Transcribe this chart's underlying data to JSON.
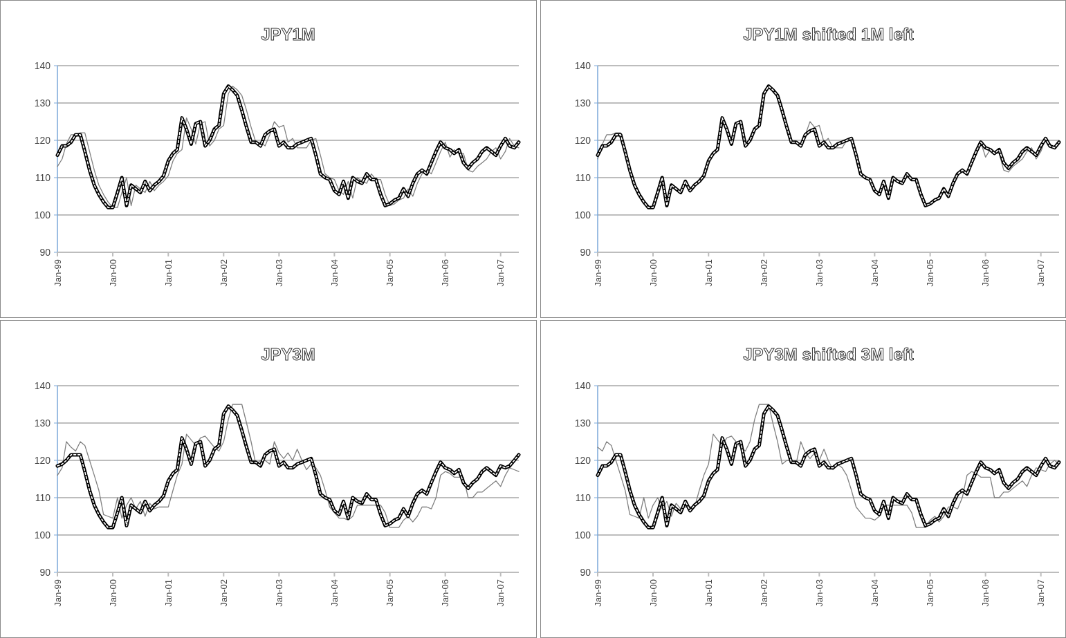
{
  "chart_data": [
    {
      "type": "line",
      "title": "JPY1M",
      "xlim": [
        "1999-01",
        "2007-05"
      ],
      "ylim": [
        90,
        140
      ],
      "yticks": [
        90,
        100,
        110,
        120,
        130,
        140
      ],
      "grid": "y",
      "marker": "none",
      "xticks": [
        {
          "value": "1999-01",
          "label": "Jan-99"
        },
        {
          "value": "2000-01",
          "label": "Jan-00"
        },
        {
          "value": "2001-01",
          "label": "Jan-01"
        },
        {
          "value": "2002-01",
          "label": "Jan-02"
        },
        {
          "value": "2003-01",
          "label": "Jan-03"
        },
        {
          "value": "2004-01",
          "label": "Jan-04"
        },
        {
          "value": "2005-01",
          "label": "Jan-05"
        },
        {
          "value": "2006-01",
          "label": "Jan-06"
        },
        {
          "value": "2007-01",
          "label": "Jan-07"
        }
      ],
      "x": [
        "1999-01",
        "1999-02",
        "1999-03",
        "1999-04",
        "1999-05",
        "1999-06",
        "1999-07",
        "1999-08",
        "1999-09",
        "1999-10",
        "1999-11",
        "1999-12",
        "2000-01",
        "2000-02",
        "2000-03",
        "2000-04",
        "2000-05",
        "2000-06",
        "2000-07",
        "2000-08",
        "2000-09",
        "2000-10",
        "2000-11",
        "2000-12",
        "2001-01",
        "2001-02",
        "2001-03",
        "2001-04",
        "2001-05",
        "2001-06",
        "2001-07",
        "2001-08",
        "2001-09",
        "2001-10",
        "2001-11",
        "2001-12",
        "2002-01",
        "2002-02",
        "2002-03",
        "2002-04",
        "2002-05",
        "2002-06",
        "2002-07",
        "2002-08",
        "2002-09",
        "2002-10",
        "2002-11",
        "2002-12",
        "2003-01",
        "2003-02",
        "2003-03",
        "2003-04",
        "2003-05",
        "2003-06",
        "2003-07",
        "2003-08",
        "2003-09",
        "2003-10",
        "2003-11",
        "2003-12",
        "2004-01",
        "2004-02",
        "2004-03",
        "2004-04",
        "2004-05",
        "2004-06",
        "2004-07",
        "2004-08",
        "2004-09",
        "2004-10",
        "2004-11",
        "2004-12",
        "2005-01",
        "2005-02",
        "2005-03",
        "2005-04",
        "2005-05",
        "2005-06",
        "2005-07",
        "2005-08",
        "2005-09",
        "2005-10",
        "2005-11",
        "2005-12",
        "2006-01",
        "2006-02",
        "2006-03",
        "2006-04",
        "2006-05",
        "2006-06",
        "2006-07",
        "2006-08",
        "2006-09",
        "2006-10",
        "2006-11",
        "2006-12",
        "2007-01",
        "2007-02",
        "2007-03",
        "2007-04",
        "2007-05"
      ],
      "series": [
        {
          "color": "#808080",
          "line_style": "solid",
          "values": [
            113,
            115,
            119,
            121.5,
            121.5,
            122,
            122,
            117,
            112,
            108,
            105.5,
            103.5,
            102,
            102,
            106,
            110,
            102.5,
            108,
            107,
            106,
            109,
            106.5,
            108,
            109,
            110.5,
            114.5,
            116.5,
            117.5,
            126,
            123,
            119,
            124.5,
            125,
            118.5,
            120,
            123,
            124,
            132.5,
            134.5,
            133.5,
            132,
            128,
            123.5,
            119.5,
            119.5,
            118.5,
            121.5,
            125,
            123.5,
            124,
            119.5,
            120.5,
            118,
            118,
            118,
            120,
            120.5,
            116,
            111,
            110,
            109.5,
            106.5,
            105.5,
            109,
            104.5,
            110,
            109,
            108.5,
            111,
            109.5,
            109.5,
            105.5,
            102.5,
            103,
            104,
            104.5,
            107,
            105,
            108.5,
            111,
            112,
            111,
            114,
            117,
            119.5,
            115.5,
            117.5,
            116.5,
            116.5,
            112,
            111.5,
            113,
            114,
            115,
            117,
            118,
            115,
            117,
            120.5,
            118.5,
            118
          ]
        },
        {
          "color": "#000000",
          "line_style": "solid",
          "values": [
            116,
            118.5,
            118.5,
            119.5,
            121.5,
            121.5,
            117,
            112,
            108,
            105.5,
            103.5,
            102,
            102,
            106,
            110,
            102.5,
            108,
            107,
            106,
            109,
            106.5,
            108,
            109,
            110.5,
            114.5,
            116.5,
            117.5,
            126,
            123,
            119,
            124.5,
            125,
            118.5,
            120,
            123,
            124,
            132.5,
            134.5,
            133.5,
            132,
            128,
            123.5,
            119.5,
            119.5,
            118.5,
            121.5,
            122.5,
            123,
            118.5,
            119.5,
            118,
            118,
            119,
            119.5,
            120,
            120.5,
            116,
            111,
            110,
            109.5,
            106.5,
            105.5,
            109,
            104.5,
            110,
            109,
            108.5,
            111,
            109.5,
            109.5,
            105.5,
            102.5,
            103,
            104,
            104.5,
            107,
            105,
            108.5,
            111,
            112,
            111,
            114,
            117,
            119.5,
            118,
            117.5,
            116.5,
            117.5,
            114,
            112.5,
            114,
            115,
            117,
            118,
            117,
            116,
            118.5,
            120.5,
            118.5,
            118,
            119.5
          ]
        },
        {
          "color": "#ffffff",
          "line_style": "dashed",
          "values": [
            116,
            118.5,
            118.5,
            119.5,
            121.5,
            121.5,
            117,
            112,
            108,
            105.5,
            103.5,
            102,
            102,
            106,
            110,
            102.5,
            108,
            107,
            106,
            109,
            106.5,
            108,
            109,
            110.5,
            114.5,
            116.5,
            117.5,
            126,
            123,
            119,
            124.5,
            125,
            118.5,
            120,
            123,
            124,
            132.5,
            134.5,
            133.5,
            132,
            128,
            123.5,
            119.5,
            119.5,
            118.5,
            121.5,
            122.5,
            123,
            118.5,
            119.5,
            118,
            118,
            119,
            119.5,
            120,
            120.5,
            116,
            111,
            110,
            109.5,
            106.5,
            105.5,
            109,
            104.5,
            110,
            109,
            108.5,
            111,
            109.5,
            109.5,
            105.5,
            102.5,
            103,
            104,
            104.5,
            107,
            105,
            108.5,
            111,
            112,
            111,
            114,
            117,
            119.5,
            118,
            117.5,
            116.5,
            117.5,
            114,
            112.5,
            114,
            115,
            117,
            118,
            117,
            116,
            118.5,
            120.5,
            118.5,
            118,
            119.5
          ]
        }
      ]
    },
    {
      "type": "line",
      "title": "JPY1M shifted 1M left",
      "xlim": [
        "1999-01",
        "2007-05"
      ],
      "ylim": [
        90,
        140
      ],
      "yticks": [
        90,
        100,
        110,
        120,
        130,
        140
      ],
      "grid": "y",
      "marker": "none",
      "xticks": [
        {
          "value": "1999-01",
          "label": "Jan-99"
        },
        {
          "value": "2000-01",
          "label": "Jan-00"
        },
        {
          "value": "2001-01",
          "label": "Jan-01"
        },
        {
          "value": "2002-01",
          "label": "Jan-02"
        },
        {
          "value": "2003-01",
          "label": "Jan-03"
        },
        {
          "value": "2004-01",
          "label": "Jan-04"
        },
        {
          "value": "2005-01",
          "label": "Jan-05"
        },
        {
          "value": "2006-01",
          "label": "Jan-06"
        },
        {
          "value": "2007-01",
          "label": "Jan-07"
        }
      ],
      "x": [
        "1999-01",
        "1999-02",
        "1999-03",
        "1999-04",
        "1999-05",
        "1999-06",
        "1999-07",
        "1999-08",
        "1999-09",
        "1999-10",
        "1999-11",
        "1999-12",
        "2000-01",
        "2000-02",
        "2000-03",
        "2000-04",
        "2000-05",
        "2000-06",
        "2000-07",
        "2000-08",
        "2000-09",
        "2000-10",
        "2000-11",
        "2000-12",
        "2001-01",
        "2001-02",
        "2001-03",
        "2001-04",
        "2001-05",
        "2001-06",
        "2001-07",
        "2001-08",
        "2001-09",
        "2001-10",
        "2001-11",
        "2001-12",
        "2002-01",
        "2002-02",
        "2002-03",
        "2002-04",
        "2002-05",
        "2002-06",
        "2002-07",
        "2002-08",
        "2002-09",
        "2002-10",
        "2002-11",
        "2002-12",
        "2003-01",
        "2003-02",
        "2003-03",
        "2003-04",
        "2003-05",
        "2003-06",
        "2003-07",
        "2003-08",
        "2003-09",
        "2003-10",
        "2003-11",
        "2003-12",
        "2004-01",
        "2004-02",
        "2004-03",
        "2004-04",
        "2004-05",
        "2004-06",
        "2004-07",
        "2004-08",
        "2004-09",
        "2004-10",
        "2004-11",
        "2004-12",
        "2005-01",
        "2005-02",
        "2005-03",
        "2005-04",
        "2005-05",
        "2005-06",
        "2005-07",
        "2005-08",
        "2005-09",
        "2005-10",
        "2005-11",
        "2005-12",
        "2006-01",
        "2006-02",
        "2006-03",
        "2006-04",
        "2006-05",
        "2006-06",
        "2006-07",
        "2006-08",
        "2006-09",
        "2006-10",
        "2006-11",
        "2006-12",
        "2007-01",
        "2007-02",
        "2007-03",
        "2007-04",
        "2007-05"
      ],
      "series": [
        {
          "color": "#808080",
          "line_style": "solid",
          "values": [
            115,
            119,
            121.5,
            121.5,
            122,
            122,
            117,
            112,
            108,
            105.5,
            103.5,
            102,
            102,
            106,
            110,
            102.5,
            108,
            107,
            106,
            109,
            106.5,
            108,
            109,
            110.5,
            114.5,
            116.5,
            117.5,
            126,
            123,
            119,
            124.5,
            125,
            118.5,
            120,
            123,
            124,
            132.5,
            134.5,
            133.5,
            132,
            128,
            123.5,
            119.5,
            119.5,
            118.5,
            121.5,
            125,
            123.5,
            124,
            119.5,
            120.5,
            118,
            118,
            118,
            120,
            120.5,
            116,
            111,
            110,
            109.5,
            106.5,
            105.5,
            109,
            104.5,
            110,
            109,
            108.5,
            111,
            109.5,
            109.5,
            105.5,
            102.5,
            103,
            104,
            104.5,
            107,
            105,
            108.5,
            111,
            112,
            111,
            114,
            117,
            119.5,
            115.5,
            117.5,
            116.5,
            116.5,
            112,
            111.5,
            113,
            114,
            115,
            117,
            118,
            115,
            117,
            120.5,
            118.5,
            118,
            120
          ]
        },
        {
          "color": "#000000",
          "line_style": "solid",
          "values": [
            116,
            118.5,
            118.5,
            119.5,
            121.5,
            121.5,
            117,
            112,
            108,
            105.5,
            103.5,
            102,
            102,
            106,
            110,
            102.5,
            108,
            107,
            106,
            109,
            106.5,
            108,
            109,
            110.5,
            114.5,
            116.5,
            117.5,
            126,
            123,
            119,
            124.5,
            125,
            118.5,
            120,
            123,
            124,
            132.5,
            134.5,
            133.5,
            132,
            128,
            123.5,
            119.5,
            119.5,
            118.5,
            121.5,
            122.5,
            123,
            118.5,
            119.5,
            118,
            118,
            119,
            119.5,
            120,
            120.5,
            116,
            111,
            110,
            109.5,
            106.5,
            105.5,
            109,
            104.5,
            110,
            109,
            108.5,
            111,
            109.5,
            109.5,
            105.5,
            102.5,
            103,
            104,
            104.5,
            107,
            105,
            108.5,
            111,
            112,
            111,
            114,
            117,
            119.5,
            118,
            117.5,
            116.5,
            117.5,
            114,
            112.5,
            114,
            115,
            117,
            118,
            117,
            116,
            118.5,
            120.5,
            118.5,
            118,
            119.5
          ]
        },
        {
          "color": "#ffffff",
          "line_style": "dashed",
          "values": [
            116,
            118.5,
            118.5,
            119.5,
            121.5,
            121.5,
            117,
            112,
            108,
            105.5,
            103.5,
            102,
            102,
            106,
            110,
            102.5,
            108,
            107,
            106,
            109,
            106.5,
            108,
            109,
            110.5,
            114.5,
            116.5,
            117.5,
            126,
            123,
            119,
            124.5,
            125,
            118.5,
            120,
            123,
            124,
            132.5,
            134.5,
            133.5,
            132,
            128,
            123.5,
            119.5,
            119.5,
            118.5,
            121.5,
            122.5,
            123,
            118.5,
            119.5,
            118,
            118,
            119,
            119.5,
            120,
            120.5,
            116,
            111,
            110,
            109.5,
            106.5,
            105.5,
            109,
            104.5,
            110,
            109,
            108.5,
            111,
            109.5,
            109.5,
            105.5,
            102.5,
            103,
            104,
            104.5,
            107,
            105,
            108.5,
            111,
            112,
            111,
            114,
            117,
            119.5,
            118,
            117.5,
            116.5,
            117.5,
            114,
            112.5,
            114,
            115,
            117,
            118,
            117,
            116,
            118.5,
            120.5,
            118.5,
            118,
            119.5
          ]
        }
      ]
    },
    {
      "type": "line",
      "title": "JPY3M",
      "xlim": [
        "1999-01",
        "2007-05"
      ],
      "ylim": [
        90,
        140
      ],
      "yticks": [
        90,
        100,
        110,
        120,
        130,
        140
      ],
      "grid": "y",
      "marker": "none",
      "xticks": [
        {
          "value": "1999-01",
          "label": "Jan-99"
        },
        {
          "value": "2000-01",
          "label": "Jan-00"
        },
        {
          "value": "2001-01",
          "label": "Jan-01"
        },
        {
          "value": "2002-01",
          "label": "Jan-02"
        },
        {
          "value": "2003-01",
          "label": "Jan-03"
        },
        {
          "value": "2004-01",
          "label": "Jan-04"
        },
        {
          "value": "2005-01",
          "label": "Jan-05"
        },
        {
          "value": "2006-01",
          "label": "Jan-06"
        },
        {
          "value": "2007-01",
          "label": "Jan-07"
        }
      ],
      "x": [
        "1999-01",
        "1999-02",
        "1999-03",
        "1999-04",
        "1999-05",
        "1999-06",
        "1999-07",
        "1999-08",
        "1999-09",
        "1999-10",
        "1999-11",
        "1999-12",
        "2000-01",
        "2000-02",
        "2000-03",
        "2000-04",
        "2000-05",
        "2000-06",
        "2000-07",
        "2000-08",
        "2000-09",
        "2000-10",
        "2000-11",
        "2000-12",
        "2001-01",
        "2001-02",
        "2001-03",
        "2001-04",
        "2001-05",
        "2001-06",
        "2001-07",
        "2001-08",
        "2001-09",
        "2001-10",
        "2001-11",
        "2001-12",
        "2002-01",
        "2002-02",
        "2002-03",
        "2002-04",
        "2002-05",
        "2002-06",
        "2002-07",
        "2002-08",
        "2002-09",
        "2002-10",
        "2002-11",
        "2002-12",
        "2003-01",
        "2003-02",
        "2003-03",
        "2003-04",
        "2003-05",
        "2003-06",
        "2003-07",
        "2003-08",
        "2003-09",
        "2003-10",
        "2003-11",
        "2003-12",
        "2004-01",
        "2004-02",
        "2004-03",
        "2004-04",
        "2004-05",
        "2004-06",
        "2004-07",
        "2004-08",
        "2004-09",
        "2004-10",
        "2004-11",
        "2004-12",
        "2005-01",
        "2005-02",
        "2005-03",
        "2005-04",
        "2005-05",
        "2005-06",
        "2005-07",
        "2005-08",
        "2005-09",
        "2005-10",
        "2005-11",
        "2005-12",
        "2006-01",
        "2006-02",
        "2006-03",
        "2006-04",
        "2006-05",
        "2006-06",
        "2006-07",
        "2006-08",
        "2006-09",
        "2006-10",
        "2006-11",
        "2006-12",
        "2007-01",
        "2007-02",
        "2007-03",
        "2007-04",
        "2007-05"
      ],
      "series": [
        {
          "color": "#808080",
          "line_style": "solid",
          "values": [
            116,
            118,
            125,
            123.5,
            122.5,
            125,
            124,
            120,
            116,
            112,
            105.5,
            105,
            104.5,
            110,
            104.5,
            108,
            110,
            107,
            109,
            105,
            108.5,
            107,
            107.5,
            107.5,
            107.5,
            112,
            116,
            119,
            127,
            125.5,
            124,
            126,
            126.5,
            125,
            123.5,
            122.5,
            125,
            131,
            135,
            135,
            135,
            130,
            125,
            119,
            120,
            120,
            119,
            125,
            122,
            120.5,
            122,
            120,
            123,
            120,
            117.5,
            119,
            118,
            116,
            112,
            107.5,
            106,
            104.5,
            104.5,
            104,
            105,
            108,
            108,
            108,
            108,
            108,
            108,
            106,
            102,
            102,
            102,
            104,
            105,
            103.5,
            105,
            107.5,
            107.5,
            107,
            110,
            116,
            117,
            116.5,
            115.5,
            115.5,
            115.5,
            110,
            110,
            111.5,
            111.5,
            112.5,
            113.5,
            114.5,
            113,
            116,
            118,
            117.5,
            117
          ]
        },
        {
          "color": "#000000",
          "line_style": "solid",
          "values": [
            118.5,
            119,
            120,
            121.5,
            121.5,
            121.5,
            117,
            112,
            108,
            105.5,
            103.5,
            102,
            102,
            106,
            110,
            102.5,
            108,
            107,
            106,
            109,
            106.5,
            108,
            109,
            110.5,
            114.5,
            116.5,
            117.5,
            126,
            123,
            119,
            124.5,
            125,
            118.5,
            120,
            123,
            124,
            132.5,
            134.5,
            133.5,
            132,
            128,
            123.5,
            119.5,
            119.5,
            118.5,
            121.5,
            122.5,
            123,
            118.5,
            119.5,
            118,
            118,
            119,
            119.5,
            120,
            120.5,
            116,
            111,
            110,
            109.5,
            106.5,
            105.5,
            109,
            104.5,
            110,
            109,
            108.5,
            111,
            109.5,
            109.5,
            105.5,
            102.5,
            103,
            104,
            104.5,
            107,
            105,
            108.5,
            111,
            112,
            111,
            114,
            117,
            119.5,
            118,
            117.5,
            116.5,
            117.5,
            114,
            112.5,
            114,
            115,
            117,
            118,
            117,
            116,
            118.5,
            118,
            118.5,
            120,
            121.5
          ]
        },
        {
          "color": "#ffffff",
          "line_style": "dashed",
          "values": [
            118.5,
            119,
            120,
            121.5,
            121.5,
            121.5,
            117,
            112,
            108,
            105.5,
            103.5,
            102,
            102,
            106,
            110,
            102.5,
            108,
            107,
            106,
            109,
            106.5,
            108,
            109,
            110.5,
            114.5,
            116.5,
            117.5,
            126,
            123,
            119,
            124.5,
            125,
            118.5,
            120,
            123,
            124,
            132.5,
            134.5,
            133.5,
            132,
            128,
            123.5,
            119.5,
            119.5,
            118.5,
            121.5,
            122.5,
            123,
            118.5,
            119.5,
            118,
            118,
            119,
            119.5,
            120,
            120.5,
            116,
            111,
            110,
            109.5,
            106.5,
            105.5,
            109,
            104.5,
            110,
            109,
            108.5,
            111,
            109.5,
            109.5,
            105.5,
            102.5,
            103,
            104,
            104.5,
            107,
            105,
            108.5,
            111,
            112,
            111,
            114,
            117,
            119.5,
            118,
            117.5,
            116.5,
            117.5,
            114,
            112.5,
            114,
            115,
            117,
            118,
            117,
            116,
            118.5,
            118,
            118.5,
            120,
            121.5
          ]
        }
      ]
    },
    {
      "type": "line",
      "title": "JPY3M shifted 3M left",
      "xlim": [
        "1999-01",
        "2007-05"
      ],
      "ylim": [
        90,
        140
      ],
      "yticks": [
        90,
        100,
        110,
        120,
        130,
        140
      ],
      "grid": "y",
      "marker": "none",
      "xticks": [
        {
          "value": "1999-01",
          "label": "Jan-99"
        },
        {
          "value": "2000-01",
          "label": "Jan-00"
        },
        {
          "value": "2001-01",
          "label": "Jan-01"
        },
        {
          "value": "2002-01",
          "label": "Jan-02"
        },
        {
          "value": "2003-01",
          "label": "Jan-03"
        },
        {
          "value": "2004-01",
          "label": "Jan-04"
        },
        {
          "value": "2005-01",
          "label": "Jan-05"
        },
        {
          "value": "2006-01",
          "label": "Jan-06"
        },
        {
          "value": "2007-01",
          "label": "Jan-07"
        }
      ],
      "x": [
        "1999-01",
        "1999-02",
        "1999-03",
        "1999-04",
        "1999-05",
        "1999-06",
        "1999-07",
        "1999-08",
        "1999-09",
        "1999-10",
        "1999-11",
        "1999-12",
        "2000-01",
        "2000-02",
        "2000-03",
        "2000-04",
        "2000-05",
        "2000-06",
        "2000-07",
        "2000-08",
        "2000-09",
        "2000-10",
        "2000-11",
        "2000-12",
        "2001-01",
        "2001-02",
        "2001-03",
        "2001-04",
        "2001-05",
        "2001-06",
        "2001-07",
        "2001-08",
        "2001-09",
        "2001-10",
        "2001-11",
        "2001-12",
        "2002-01",
        "2002-02",
        "2002-03",
        "2002-04",
        "2002-05",
        "2002-06",
        "2002-07",
        "2002-08",
        "2002-09",
        "2002-10",
        "2002-11",
        "2002-12",
        "2003-01",
        "2003-02",
        "2003-03",
        "2003-04",
        "2003-05",
        "2003-06",
        "2003-07",
        "2003-08",
        "2003-09",
        "2003-10",
        "2003-11",
        "2003-12",
        "2004-01",
        "2004-02",
        "2004-03",
        "2004-04",
        "2004-05",
        "2004-06",
        "2004-07",
        "2004-08",
        "2004-09",
        "2004-10",
        "2004-11",
        "2004-12",
        "2005-01",
        "2005-02",
        "2005-03",
        "2005-04",
        "2005-05",
        "2005-06",
        "2005-07",
        "2005-08",
        "2005-09",
        "2005-10",
        "2005-11",
        "2005-12",
        "2006-01",
        "2006-02",
        "2006-03",
        "2006-04",
        "2006-05",
        "2006-06",
        "2006-07",
        "2006-08",
        "2006-09",
        "2006-10",
        "2006-11",
        "2006-12",
        "2007-01",
        "2007-02",
        "2007-03",
        "2007-04",
        "2007-05"
      ],
      "series": [
        {
          "color": "#808080",
          "line_style": "solid",
          "values": [
            123.5,
            122.5,
            125,
            124,
            120,
            116,
            112,
            105.5,
            105,
            104.5,
            110,
            104.5,
            108,
            110,
            107,
            109,
            105,
            108.5,
            107,
            107.5,
            107.5,
            107.5,
            112,
            116,
            119,
            127,
            125.5,
            124,
            126,
            126.5,
            125,
            123.5,
            122.5,
            125,
            131,
            135,
            135,
            135,
            130,
            125,
            119,
            120,
            120,
            119,
            125,
            122,
            120.5,
            122,
            120,
            123,
            120,
            117.5,
            119,
            118,
            116,
            112,
            107.5,
            106,
            104.5,
            104.5,
            104,
            105,
            108,
            108,
            108,
            108,
            108,
            108,
            106,
            102,
            102,
            102,
            104,
            105,
            103.5,
            105,
            107.5,
            107.5,
            107,
            110,
            116,
            117,
            116.5,
            115.5,
            115.5,
            115.5,
            110,
            110,
            111.5,
            111.5,
            112.5,
            113.5,
            114.5,
            113,
            116,
            118,
            117.5,
            117,
            119,
            120,
            119
          ]
        },
        {
          "color": "#000000",
          "line_style": "solid",
          "values": [
            116,
            118.5,
            118.5,
            119.5,
            121.5,
            121.5,
            117,
            112,
            108,
            105.5,
            103.5,
            102,
            102,
            106,
            110,
            102.5,
            108,
            107,
            106,
            109,
            106.5,
            108,
            109,
            110.5,
            114.5,
            116.5,
            117.5,
            126,
            123,
            119,
            124.5,
            125,
            118.5,
            120,
            123,
            124,
            132.5,
            134.5,
            133.5,
            132,
            128,
            123.5,
            119.5,
            119.5,
            118.5,
            121.5,
            122.5,
            123,
            118.5,
            119.5,
            118,
            118,
            119,
            119.5,
            120,
            120.5,
            116,
            111,
            110,
            109.5,
            106.5,
            105.5,
            109,
            104.5,
            110,
            109,
            108.5,
            111,
            109.5,
            109.5,
            105.5,
            102.5,
            103,
            104,
            104.5,
            107,
            105,
            108.5,
            111,
            112,
            111,
            114,
            117,
            119.5,
            118,
            117.5,
            116.5,
            117.5,
            114,
            112.5,
            114,
            115,
            117,
            118,
            117,
            116,
            118.5,
            120.5,
            118.5,
            118,
            119.5
          ]
        },
        {
          "color": "#ffffff",
          "line_style": "dashed",
          "values": [
            116,
            118.5,
            118.5,
            119.5,
            121.5,
            121.5,
            117,
            112,
            108,
            105.5,
            103.5,
            102,
            102,
            106,
            110,
            102.5,
            108,
            107,
            106,
            109,
            106.5,
            108,
            109,
            110.5,
            114.5,
            116.5,
            117.5,
            126,
            123,
            119,
            124.5,
            125,
            118.5,
            120,
            123,
            124,
            132.5,
            134.5,
            133.5,
            132,
            128,
            123.5,
            119.5,
            119.5,
            118.5,
            121.5,
            122.5,
            123,
            118.5,
            119.5,
            118,
            118,
            119,
            119.5,
            120,
            120.5,
            116,
            111,
            110,
            109.5,
            106.5,
            105.5,
            109,
            104.5,
            110,
            109,
            108.5,
            111,
            109.5,
            109.5,
            105.5,
            102.5,
            103,
            104,
            104.5,
            107,
            105,
            108.5,
            111,
            112,
            111,
            114,
            117,
            119.5,
            118,
            117.5,
            116.5,
            117.5,
            114,
            112.5,
            114,
            115,
            117,
            118,
            117,
            116,
            118.5,
            120.5,
            118.5,
            118,
            119.5
          ]
        }
      ]
    }
  ]
}
